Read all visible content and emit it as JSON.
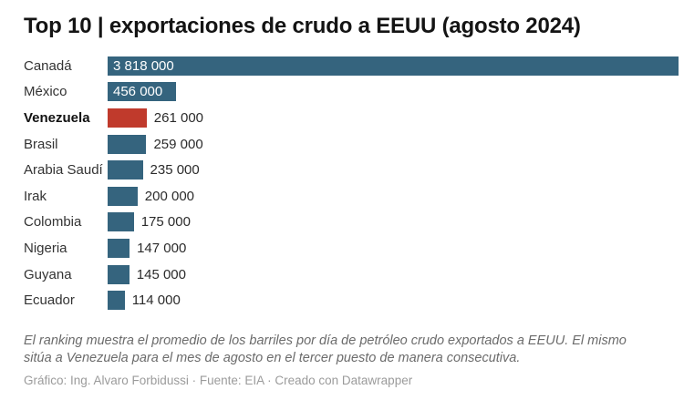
{
  "header": {
    "title": "Top 10 | exportaciones de crudo a EEUU (agosto 2024)"
  },
  "chart_data": {
    "type": "bar",
    "orientation": "horizontal",
    "title": "Top 10 | exportaciones de crudo a EEUU (agosto 2024)",
    "xlim": [
      0,
      3818000
    ],
    "grid": false,
    "legend": false,
    "bar_color": "#35647e",
    "highlight_color": "#c03a2c",
    "categories": [
      "Canadá",
      "México",
      "Venezuela",
      "Brasil",
      "Arabia Saudí",
      "Irak",
      "Colombia",
      "Nigeria",
      "Guyana",
      "Ecuador"
    ],
    "values": [
      3818000,
      456000,
      261000,
      259000,
      235000,
      200000,
      175000,
      147000,
      145000,
      114000
    ],
    "rows": [
      {
        "label": "Canadá",
        "value": 3818000,
        "value_label": "3 818 000",
        "inside": true,
        "bold": false,
        "highlight": false
      },
      {
        "label": "México",
        "value": 456000,
        "value_label": "456 000",
        "inside": true,
        "bold": false,
        "highlight": false
      },
      {
        "label": "Venezuela",
        "value": 261000,
        "value_label": "261 000",
        "inside": false,
        "bold": true,
        "highlight": true
      },
      {
        "label": "Brasil",
        "value": 259000,
        "value_label": "259 000",
        "inside": false,
        "bold": false,
        "highlight": false
      },
      {
        "label": "Arabia Saudí",
        "value": 235000,
        "value_label": "235 000",
        "inside": false,
        "bold": false,
        "highlight": false
      },
      {
        "label": "Irak",
        "value": 200000,
        "value_label": "200 000",
        "inside": false,
        "bold": false,
        "highlight": false
      },
      {
        "label": "Colombia",
        "value": 175000,
        "value_label": "175 000",
        "inside": false,
        "bold": false,
        "highlight": false
      },
      {
        "label": "Nigeria",
        "value": 147000,
        "value_label": "147 000",
        "inside": false,
        "bold": false,
        "highlight": false
      },
      {
        "label": "Guyana",
        "value": 145000,
        "value_label": "145 000",
        "inside": false,
        "bold": false,
        "highlight": false
      },
      {
        "label": "Ecuador",
        "value": 114000,
        "value_label": "114 000",
        "inside": false,
        "bold": false,
        "highlight": false
      }
    ]
  },
  "footer": {
    "description": "El ranking muestra el promedio de los barriles por día de petróleo crudo exportados a EEUU. El mismo sitúa a Venezuela para el mes de agosto en el tercer puesto de manera consecutiva.",
    "attribution": "Gráfico: Ing. Alvaro Forbidussi · Fuente: EIA · Creado con Datawrapper"
  }
}
